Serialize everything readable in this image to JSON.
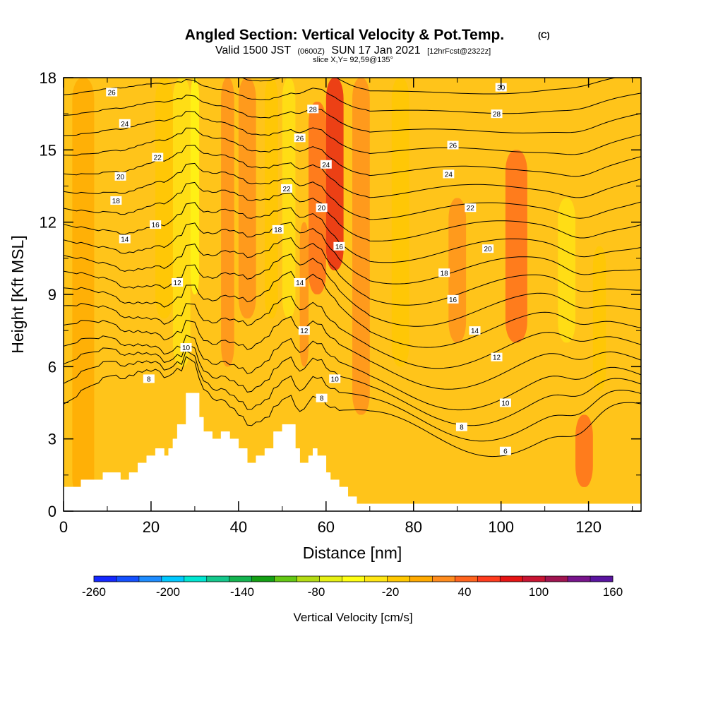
{
  "chart_data": {
    "type": "heatmap",
    "title": "Angled Section: Vertical Velocity & Pot.Temp.",
    "title_tag": "(C)",
    "subtitle": {
      "part1": "Valid 1500 JST",
      "part2": "(0600Z)",
      "part3": "SUN 17 Jan 2021",
      "part4": "[12hrFcst@2322z]"
    },
    "slice_label": "slice X,Y= 92,59@135°",
    "xlabel": "Distance [nm]",
    "ylabel": "Height [Kft MSL]",
    "xlim": [
      0,
      132
    ],
    "ylim": [
      0,
      18
    ],
    "x_ticks": [
      {
        "value": 0,
        "label": "0"
      },
      {
        "value": 20,
        "label": "20"
      },
      {
        "value": 40,
        "label": "40"
      },
      {
        "value": 60,
        "label": "60"
      },
      {
        "value": 80,
        "label": "80"
      },
      {
        "value": 100,
        "label": "100"
      },
      {
        "value": 120,
        "label": "120"
      }
    ],
    "y_ticks": [
      {
        "value": 0,
        "label": "0"
      },
      {
        "value": 3,
        "label": "3"
      },
      {
        "value": 6,
        "label": "6"
      },
      {
        "value": 9,
        "label": "9"
      },
      {
        "value": 12,
        "label": "12"
      },
      {
        "value": 15,
        "label": "15"
      },
      {
        "value": 18,
        "label": "18"
      }
    ],
    "colorbar": {
      "label": "Vertical Velocity [cm/s]",
      "min": -260,
      "max": 160,
      "colors": [
        "#1428ff",
        "#1450ff",
        "#1e8cff",
        "#00c8ff",
        "#00e6d2",
        "#14c88c",
        "#14b450",
        "#14a014",
        "#64c814",
        "#b4dc14",
        "#e6f014",
        "#ffff14",
        "#ffe614",
        "#ffc800",
        "#ffaa00",
        "#ff8c1e",
        "#ff641e",
        "#ff3c1e",
        "#e61414",
        "#c81432",
        "#a01450",
        "#78148c",
        "#5a14a0"
      ],
      "tick_labels": [
        {
          "value": -260,
          "label": "-260"
        },
        {
          "value": -200,
          "label": "-200"
        },
        {
          "value": -140,
          "label": "-140"
        },
        {
          "value": -80,
          "label": "-80"
        },
        {
          "value": -20,
          "label": "-20"
        },
        {
          "value": 40,
          "label": "40"
        },
        {
          "value": 100,
          "label": "100"
        },
        {
          "value": 160,
          "label": "160"
        }
      ]
    },
    "background_color": "#ffc41a",
    "velocity_bands": [
      {
        "x": [
          2,
          7
        ],
        "w": 0,
        "y": [
          0.5,
          18
        ]
      },
      {
        "x": [
          21,
          25
        ],
        "w": -20,
        "y": [
          8,
          18
        ]
      },
      {
        "x": [
          25,
          29
        ],
        "w": -35,
        "y": [
          6,
          18
        ]
      },
      {
        "x": [
          29,
          31
        ],
        "w": -55,
        "y": [
          9,
          18
        ]
      },
      {
        "x": [
          36,
          39
        ],
        "w": 20,
        "y": [
          6,
          18
        ]
      },
      {
        "x": [
          40,
          44
        ],
        "w": 30,
        "y": [
          8,
          18
        ]
      },
      {
        "x": [
          46,
          49
        ],
        "w": -10,
        "y": [
          8,
          18
        ]
      },
      {
        "x": [
          50,
          53
        ],
        "w": -30,
        "y": [
          8,
          18
        ]
      },
      {
        "x": [
          54,
          56
        ],
        "w": 25,
        "y": [
          6,
          12
        ]
      },
      {
        "x": [
          56,
          60
        ],
        "w": 45,
        "y": [
          9,
          17
        ]
      },
      {
        "x": [
          60,
          64
        ],
        "w": 80,
        "y": [
          10,
          18
        ]
      },
      {
        "x": [
          66,
          70
        ],
        "w": 15,
        "y": [
          4,
          18
        ]
      },
      {
        "x": [
          75,
          79
        ],
        "w": -10,
        "y": [
          6,
          18
        ]
      },
      {
        "x": [
          88,
          92
        ],
        "w": 20,
        "y": [
          7,
          13
        ]
      },
      {
        "x": [
          101,
          106
        ],
        "w": 35,
        "y": [
          7,
          15
        ]
      },
      {
        "x": [
          113,
          117
        ],
        "w": -25,
        "y": [
          7,
          13
        ]
      },
      {
        "x": [
          117,
          121
        ],
        "w": 50,
        "y": [
          1,
          4
        ]
      },
      {
        "x": [
          121,
          124
        ],
        "w": -10,
        "y": [
          5,
          11
        ]
      }
    ],
    "terrain": {
      "x": [
        0,
        4,
        4,
        9,
        9,
        13,
        13,
        15,
        15,
        17,
        17,
        19,
        19,
        21,
        21,
        23,
        23,
        24,
        24,
        25,
        25,
        26,
        26,
        28,
        28,
        31,
        31,
        32,
        32,
        34,
        34,
        36,
        36,
        38,
        38,
        40,
        40,
        42,
        42,
        44,
        44,
        46,
        46,
        48,
        48,
        50,
        50,
        53,
        53,
        54,
        54,
        56,
        56,
        57,
        57,
        58,
        58,
        60,
        60,
        61,
        61,
        63,
        63,
        65,
        65,
        67,
        67,
        69,
        69,
        71,
        71,
        132
      ],
      "y": [
        1.0,
        1.0,
        1.3,
        1.3,
        1.6,
        1.6,
        1.3,
        1.3,
        1.6,
        1.6,
        2.0,
        2.0,
        2.3,
        2.3,
        2.6,
        2.6,
        2.3,
        2.3,
        2.6,
        2.6,
        3.0,
        3.0,
        3.6,
        3.6,
        4.9,
        4.9,
        3.9,
        3.9,
        3.3,
        3.3,
        3.0,
        3.0,
        3.3,
        3.3,
        3.0,
        3.0,
        2.6,
        2.6,
        2.0,
        2.0,
        2.3,
        2.3,
        2.6,
        2.6,
        3.3,
        3.3,
        3.6,
        3.6,
        2.6,
        2.6,
        2.0,
        2.0,
        2.3,
        2.3,
        2.6,
        2.6,
        2.3,
        2.3,
        1.6,
        1.6,
        1.3,
        1.3,
        1.0,
        1.0,
        0.6,
        0.6,
        0.3,
        0.3,
        0.3,
        0.3,
        0.3,
        0.3
      ]
    },
    "contour_base_heights": [
      4.0,
      4.6,
      5.2,
      5.8,
      6.6,
      7.4,
      8.2,
      9.0,
      9.8,
      10.6,
      11.4,
      12.2,
      13.0,
      13.8,
      14.6,
      15.4,
      16.2,
      17.0,
      17.8,
      18.6,
      19.4
    ],
    "contour_labels": [
      {
        "x": 11,
        "y": 17.4,
        "label": "26"
      },
      {
        "x": 14,
        "y": 16.1,
        "label": "24"
      },
      {
        "x": 21.5,
        "y": 14.7,
        "label": "22"
      },
      {
        "x": 13,
        "y": 13.9,
        "label": "20"
      },
      {
        "x": 12,
        "y": 12.9,
        "label": "18"
      },
      {
        "x": 21,
        "y": 11.9,
        "label": "16"
      },
      {
        "x": 14,
        "y": 11.3,
        "label": "14"
      },
      {
        "x": 26,
        "y": 9.5,
        "label": "12"
      },
      {
        "x": 28,
        "y": 6.8,
        "label": "10"
      },
      {
        "x": 19.5,
        "y": 5.5,
        "label": "8"
      },
      {
        "x": 57,
        "y": 16.7,
        "label": "28"
      },
      {
        "x": 54,
        "y": 15.5,
        "label": "26"
      },
      {
        "x": 60,
        "y": 14.4,
        "label": "24"
      },
      {
        "x": 51,
        "y": 13.4,
        "label": "22"
      },
      {
        "x": 59,
        "y": 12.6,
        "label": "20"
      },
      {
        "x": 49,
        "y": 11.7,
        "label": "18"
      },
      {
        "x": 63,
        "y": 11.0,
        "label": "16"
      },
      {
        "x": 54,
        "y": 9.5,
        "label": "14"
      },
      {
        "x": 55,
        "y": 7.5,
        "label": "12"
      },
      {
        "x": 62,
        "y": 5.5,
        "label": "10"
      },
      {
        "x": 59,
        "y": 4.7,
        "label": "8"
      },
      {
        "x": 100,
        "y": 17.6,
        "label": "30"
      },
      {
        "x": 99,
        "y": 16.5,
        "label": "28"
      },
      {
        "x": 89,
        "y": 15.2,
        "label": "26"
      },
      {
        "x": 88,
        "y": 14.0,
        "label": "24"
      },
      {
        "x": 93,
        "y": 12.6,
        "label": "22"
      },
      {
        "x": 97,
        "y": 10.9,
        "label": "20"
      },
      {
        "x": 87,
        "y": 9.9,
        "label": "18"
      },
      {
        "x": 89,
        "y": 8.8,
        "label": "16"
      },
      {
        "x": 94,
        "y": 7.5,
        "label": "14"
      },
      {
        "x": 99,
        "y": 6.4,
        "label": "12"
      },
      {
        "x": 101,
        "y": 4.5,
        "label": "10"
      },
      {
        "x": 91,
        "y": 3.5,
        "label": "8"
      },
      {
        "x": 101,
        "y": 2.5,
        "label": "6"
      }
    ]
  }
}
